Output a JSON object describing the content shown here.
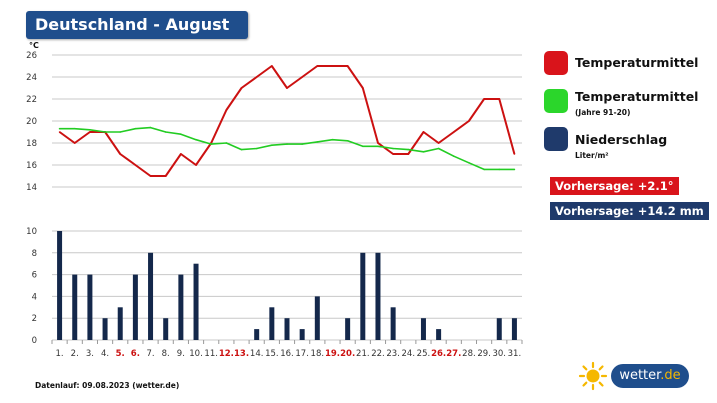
{
  "header": {
    "title": "Deutschland - August"
  },
  "legend": {
    "temp": {
      "label": "Temperaturmittel",
      "color": "#d9141b"
    },
    "temp_normal": {
      "label": "Temperaturmittel",
      "sub": "(Jahre 91-20)",
      "color": "#2bd62b"
    },
    "precip": {
      "label": "Niederschlag",
      "sub": "Liter/m²",
      "color": "#1f3a6b"
    }
  },
  "forecast": {
    "temp": {
      "text": "Vorhersage: +2.1°",
      "color": "#d9141b"
    },
    "precip": {
      "text": "Vorhersage: +14.2 mm",
      "color": "#1f3a6b"
    }
  },
  "footer": {
    "text": "Datenlauf: 09.08.2023 (wetter.de)"
  },
  "logo": {
    "name": "wetter",
    "tld": ".de"
  },
  "chart_data": [
    {
      "type": "line",
      "ylabel": "°C",
      "ylim": [
        14,
        26
      ],
      "yticks": [
        14,
        16,
        18,
        20,
        22,
        24,
        26
      ],
      "grid": true,
      "series": [
        {
          "name": "Temperaturmittel",
          "color": "#cc1111",
          "values": [
            19,
            18,
            19,
            19,
            17,
            16,
            15,
            15,
            17,
            16,
            18,
            21,
            23,
            24,
            25,
            23,
            24,
            25,
            25,
            25,
            23,
            18,
            17,
            17,
            19,
            18,
            19,
            20,
            22,
            22,
            17
          ]
        },
        {
          "name": "Temperaturmittel (Jahre 91-20)",
          "color": "#22cc22",
          "values": [
            19.3,
            19.3,
            19.2,
            19.0,
            19.0,
            19.3,
            19.4,
            19.0,
            18.8,
            18.3,
            17.9,
            18.0,
            17.4,
            17.5,
            17.8,
            17.9,
            17.9,
            18.1,
            18.3,
            18.2,
            17.7,
            17.7,
            17.5,
            17.4,
            17.2,
            17.5,
            16.8,
            16.2,
            15.6,
            15.6,
            15.6
          ]
        }
      ]
    },
    {
      "type": "bar",
      "ylim": [
        0,
        10
      ],
      "yticks": [
        0,
        2,
        4,
        6,
        8,
        10
      ],
      "grid": true,
      "categories": [
        "1.",
        "2.",
        "3.",
        "4.",
        "5.",
        "6.",
        "7.",
        "8.",
        "9.",
        "10.",
        "11.",
        "12.",
        "13.",
        "14.",
        "15.",
        "16.",
        "17.",
        "18.",
        "19.",
        "20.",
        "21.",
        "22.",
        "23.",
        "24.",
        "25.",
        "26.",
        "27.",
        "28.",
        "29.",
        "30.",
        "31."
      ],
      "weekend": [
        false,
        false,
        false,
        false,
        true,
        true,
        false,
        false,
        false,
        false,
        false,
        true,
        true,
        false,
        false,
        false,
        false,
        false,
        true,
        true,
        false,
        false,
        false,
        false,
        false,
        true,
        true,
        false,
        false,
        false,
        false
      ],
      "series": [
        {
          "name": "Niederschlag",
          "color": "#14284b",
          "values": [
            10,
            6,
            6,
            2,
            3,
            6,
            8,
            2,
            6,
            7,
            0,
            0,
            0,
            1,
            3,
            2,
            1,
            4,
            0,
            2,
            8,
            8,
            3,
            0,
            2,
            1,
            0,
            0,
            0,
            2,
            2
          ]
        }
      ]
    }
  ]
}
